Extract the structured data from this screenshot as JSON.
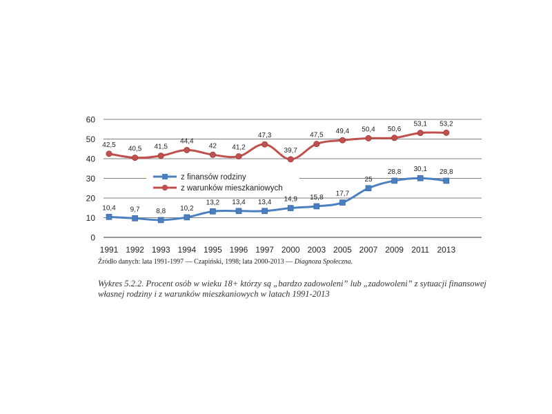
{
  "colors": {
    "series_blue": "#4a7fc1",
    "series_red": "#c0504d",
    "gridline": "#7f7f7f",
    "axis_text": "#222222"
  },
  "chart_data": {
    "type": "line",
    "x": [
      "1991",
      "1992",
      "1993",
      "1994",
      "1995",
      "1996",
      "1997",
      "2000",
      "2003",
      "2005",
      "2007",
      "2009",
      "2011",
      "2013"
    ],
    "ylim": [
      0,
      60
    ],
    "yticks": [
      "0",
      "10",
      "20",
      "30",
      "40",
      "50",
      "60"
    ],
    "grid": true,
    "legend_position": "center-left",
    "series": [
      {
        "name": "z finansów rodziny",
        "color": "#4a7fc1",
        "marker": "square",
        "values": [
          10.4,
          9.7,
          8.8,
          10.2,
          13.2,
          13.4,
          13.4,
          14.9,
          15.8,
          17.7,
          25,
          28.8,
          30.1,
          28.8
        ],
        "labels": [
          "10,4",
          "9,7",
          "8,8",
          "10,2",
          "13,2",
          "13,4",
          "13,4",
          "14,9",
          "15,8",
          "17,7",
          "25",
          "28,8",
          "30,1",
          "28,8"
        ]
      },
      {
        "name": "z warunków mieszkaniowych",
        "color": "#c0504d",
        "marker": "circle",
        "values": [
          42.5,
          40.5,
          41.5,
          44.4,
          42,
          41.2,
          47.3,
          39.7,
          47.5,
          49.4,
          50.4,
          50.6,
          53.1,
          53.2
        ],
        "labels": [
          "42,5",
          "40,5",
          "41,5",
          "44,4",
          "42",
          "41,2",
          "47,3",
          "39,7",
          "47,5",
          "49,4",
          "50,4",
          "50,6",
          "53,1",
          "53,2"
        ]
      }
    ]
  },
  "source": {
    "prefix": "Źródło danych: lata 1991-1997 — Czapiński, 1998; lata 2000-2013 — ",
    "italic": "Diagnoza Społeczna."
  },
  "caption": "Wykres 5.2.2. Procent osób w wieku 18+ którzy są „bardzo zadowoleni” lub „zadowoleni” z sytuacji finansowej własnej rodziny i z warunków mieszkaniowych w latach 1991-2013"
}
